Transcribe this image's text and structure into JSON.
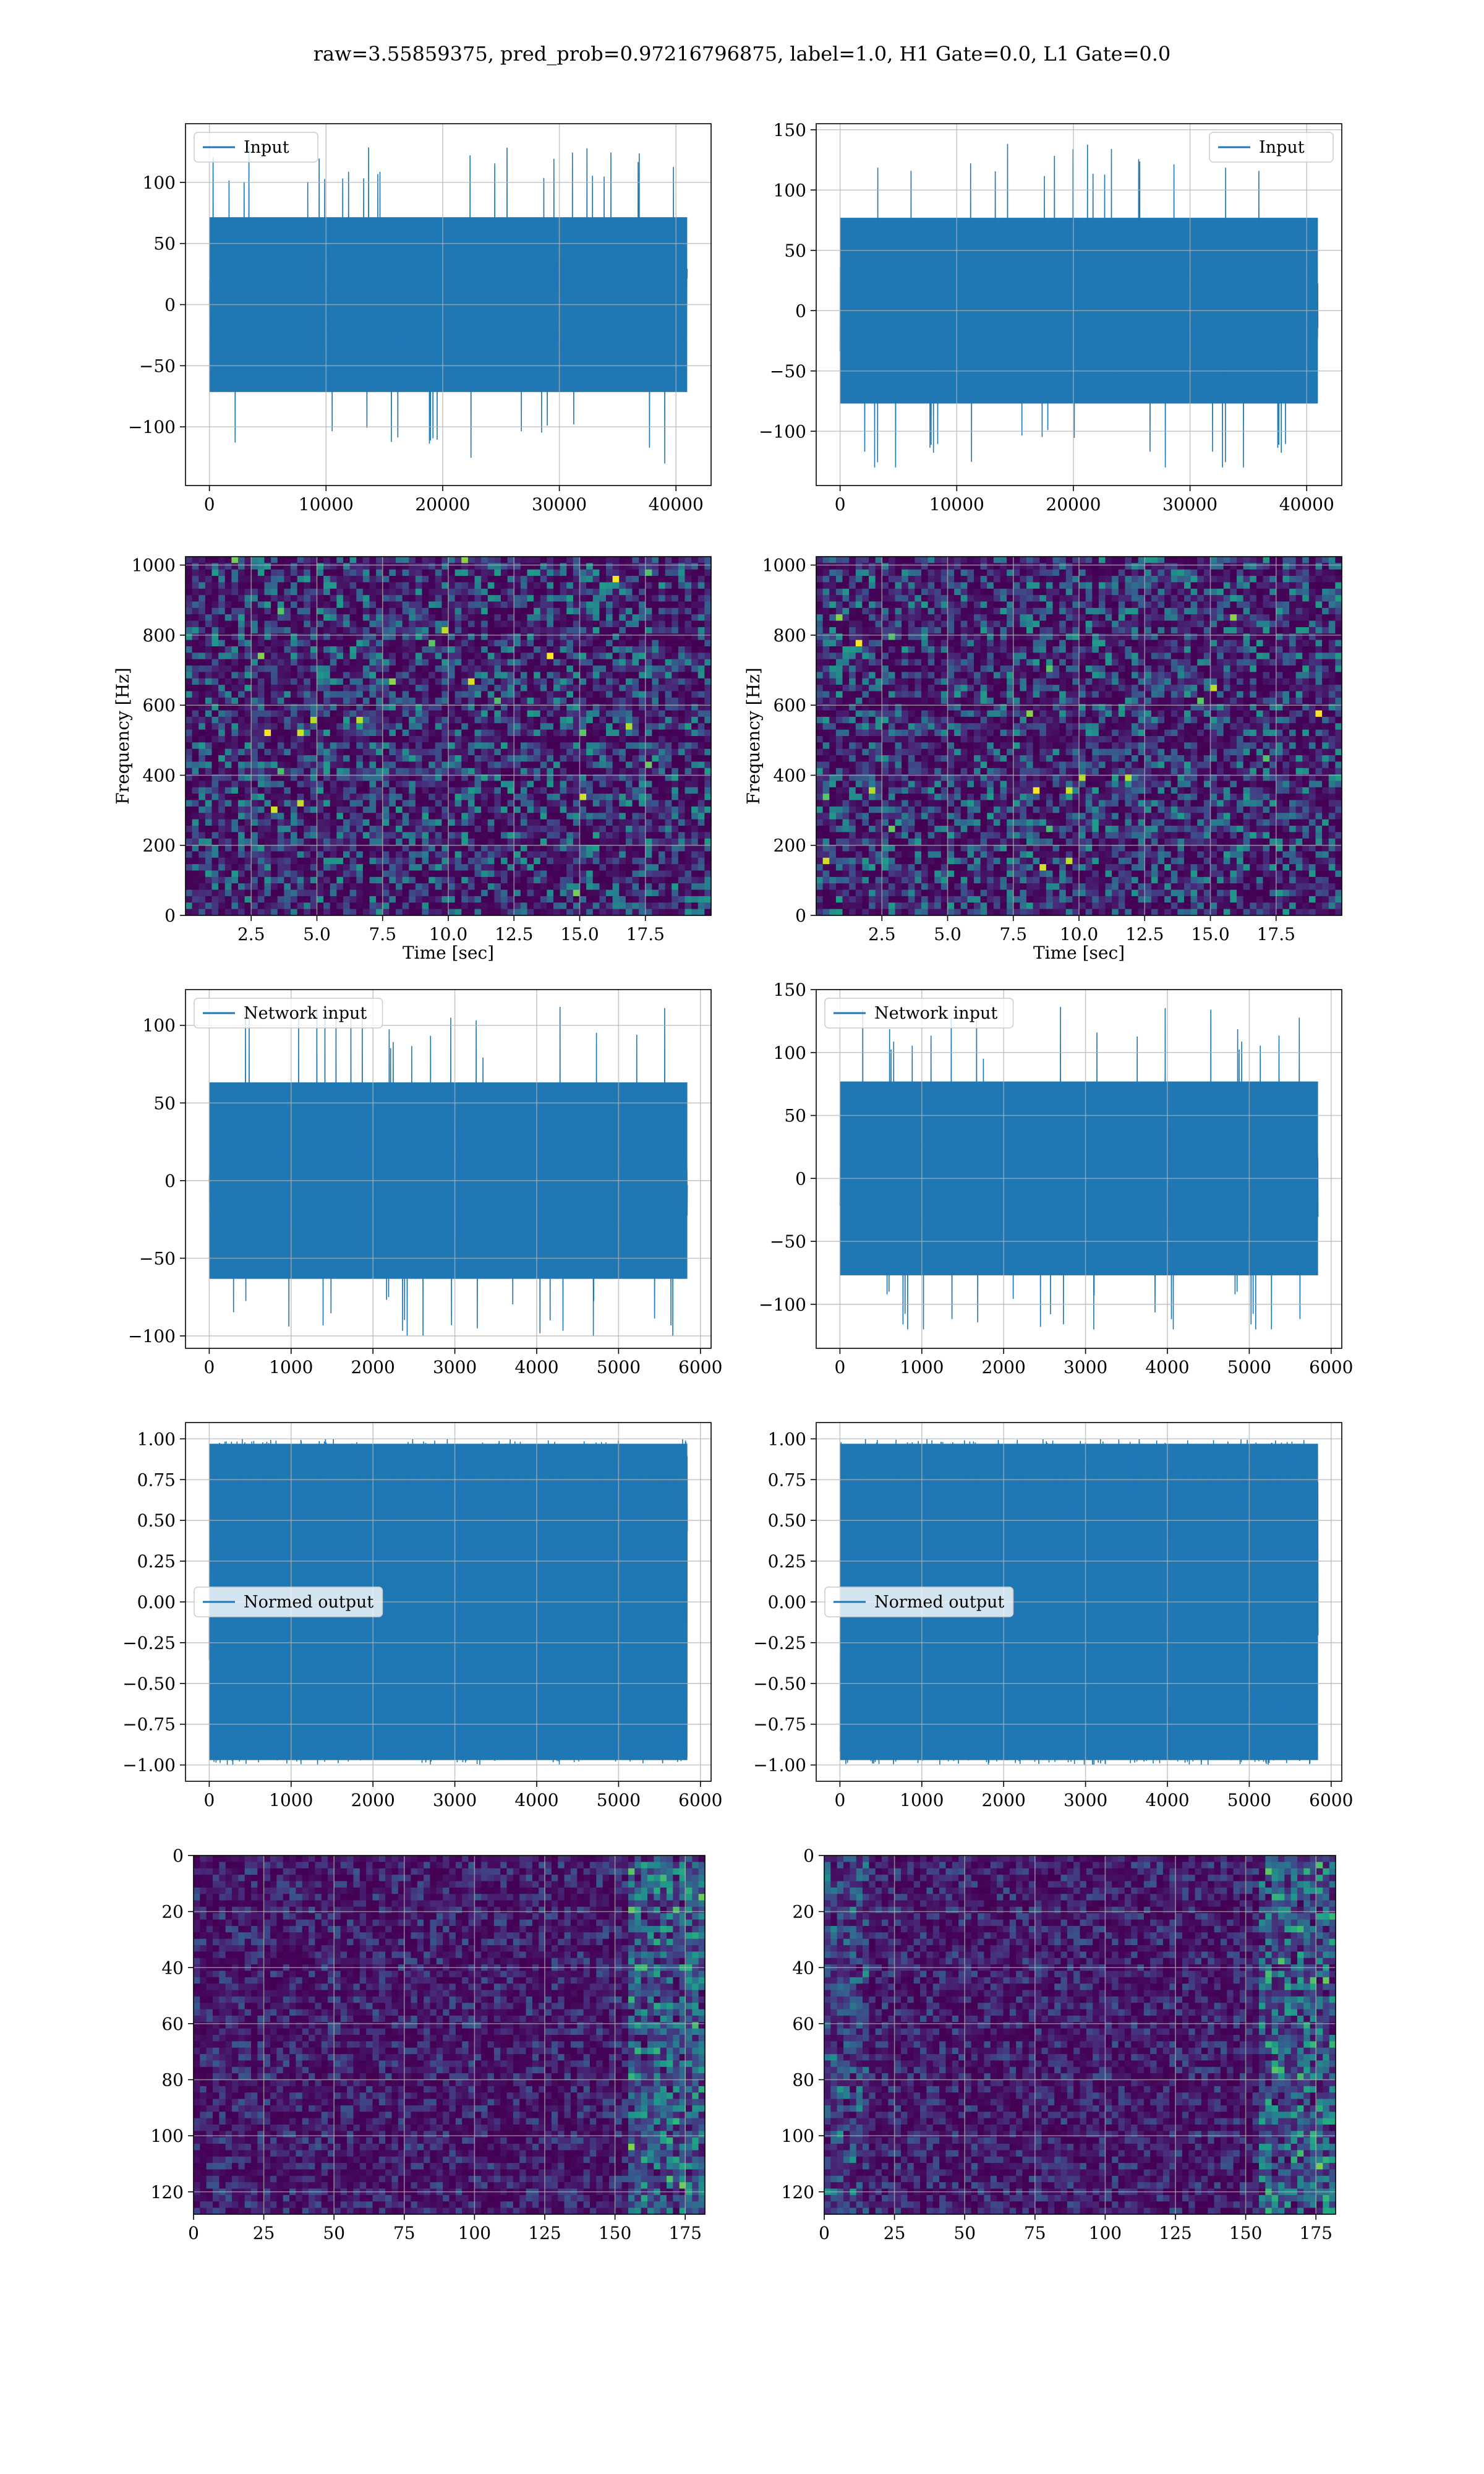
{
  "figure": {
    "title": "raw=3.55859375, pred_prob=0.97216796875, label=1.0, H1 Gate=0.0, L1 Gate=0.0"
  },
  "colors": {
    "line": "#1f77b4",
    "grid": "#b0b0b0",
    "viridis_low": "#440154",
    "viridis_mid": "#21918c",
    "viridis_high": "#fde725"
  },
  "chart_data": [
    {
      "type": "line",
      "row": 1,
      "col": 1,
      "series": [
        {
          "name": "Input",
          "amplitude_range": [
            -130,
            130
          ]
        }
      ],
      "x_range": [
        0,
        40960
      ],
      "xlim": [
        -2048,
        43008
      ],
      "ylim": [
        -148,
        148
      ],
      "x_ticks": [
        0,
        10000,
        20000,
        30000,
        40000
      ],
      "y_ticks": [
        -100,
        -50,
        0,
        50,
        100
      ],
      "legend": "Input",
      "legend_loc": "upper left",
      "grid": true
    },
    {
      "type": "line",
      "row": 1,
      "col": 2,
      "series": [
        {
          "name": "Input",
          "amplitude_range": [
            -130,
            140
          ]
        }
      ],
      "x_range": [
        0,
        40960
      ],
      "xlim": [
        -2048,
        43008
      ],
      "ylim": [
        -145,
        155
      ],
      "x_ticks": [
        0,
        10000,
        20000,
        30000,
        40000
      ],
      "y_ticks": [
        -100,
        -50,
        0,
        50,
        100,
        150
      ],
      "legend": "Input",
      "legend_loc": "upper right",
      "grid": true
    },
    {
      "type": "heatmap",
      "row": 2,
      "col": 1,
      "xlabel": "Time [sec]",
      "ylabel": "Frequency [Hz]",
      "xlim": [
        0,
        20
      ],
      "ylim": [
        0,
        1024
      ],
      "x_ticks": [
        2.5,
        5.0,
        7.5,
        10.0,
        12.5,
        15.0,
        17.5
      ],
      "y_ticks": [
        0,
        200,
        400,
        600,
        800,
        1000
      ],
      "colormap": "viridis",
      "grid": true
    },
    {
      "type": "heatmap",
      "row": 2,
      "col": 2,
      "xlabel": "Time [sec]",
      "ylabel": "Frequency [Hz]",
      "xlim": [
        0,
        20
      ],
      "ylim": [
        0,
        1024
      ],
      "x_ticks": [
        2.5,
        5.0,
        7.5,
        10.0,
        12.5,
        15.0,
        17.5
      ],
      "y_ticks": [
        0,
        200,
        400,
        600,
        800,
        1000
      ],
      "colormap": "viridis",
      "grid": true
    },
    {
      "type": "line",
      "row": 3,
      "col": 1,
      "series": [
        {
          "name": "Network input",
          "amplitude_range": [
            -100,
            115
          ]
        }
      ],
      "x_range": [
        0,
        5840
      ],
      "xlim": [
        -290,
        6130
      ],
      "ylim": [
        -108,
        123
      ],
      "x_ticks": [
        0,
        1000,
        2000,
        3000,
        4000,
        5000,
        6000
      ],
      "y_ticks": [
        -100,
        -50,
        0,
        50,
        100
      ],
      "legend": "Network input",
      "legend_loc": "upper left",
      "grid": true
    },
    {
      "type": "line",
      "row": 3,
      "col": 2,
      "series": [
        {
          "name": "Network input",
          "amplitude_range": [
            -120,
            140
          ]
        }
      ],
      "x_range": [
        0,
        5840
      ],
      "xlim": [
        -290,
        6130
      ],
      "ylim": [
        -135,
        150
      ],
      "x_ticks": [
        0,
        1000,
        2000,
        3000,
        4000,
        5000,
        6000
      ],
      "y_ticks": [
        -100,
        -50,
        0,
        50,
        100,
        150
      ],
      "legend": "Network input",
      "legend_loc": "upper left",
      "grid": true
    },
    {
      "type": "line",
      "row": 4,
      "col": 1,
      "series": [
        {
          "name": "Normed output",
          "amplitude_range": [
            -1.0,
            1.0
          ]
        }
      ],
      "x_range": [
        0,
        5840
      ],
      "xlim": [
        -290,
        6130
      ],
      "ylim": [
        -1.1,
        1.1
      ],
      "x_ticks": [
        0,
        1000,
        2000,
        3000,
        4000,
        5000,
        6000
      ],
      "y_ticks": [
        -1.0,
        -0.75,
        -0.5,
        -0.25,
        0.0,
        0.25,
        0.5,
        0.75,
        1.0
      ],
      "legend": "Normed output",
      "legend_loc": "center left",
      "grid": true
    },
    {
      "type": "line",
      "row": 4,
      "col": 2,
      "series": [
        {
          "name": "Normed output",
          "amplitude_range": [
            -1.0,
            1.0
          ]
        }
      ],
      "x_range": [
        0,
        5840
      ],
      "xlim": [
        -290,
        6130
      ],
      "ylim": [
        -1.1,
        1.1
      ],
      "x_ticks": [
        0,
        1000,
        2000,
        3000,
        4000,
        5000,
        6000
      ],
      "y_ticks": [
        -1.0,
        -0.75,
        -0.5,
        -0.25,
        0.0,
        0.25,
        0.5,
        0.75,
        1.0
      ],
      "legend": "Normed output",
      "legend_loc": "center left",
      "grid": true
    },
    {
      "type": "heatmap",
      "row": 5,
      "col": 1,
      "xlim": [
        0,
        182
      ],
      "ylim": [
        128,
        0
      ],
      "x_ticks": [
        0,
        25,
        50,
        75,
        100,
        125,
        150,
        175
      ],
      "y_ticks": [
        0,
        20,
        40,
        60,
        80,
        100,
        120
      ],
      "colormap": "viridis",
      "grid": true
    },
    {
      "type": "heatmap",
      "row": 5,
      "col": 2,
      "xlim": [
        0,
        182
      ],
      "ylim": [
        128,
        0
      ],
      "x_ticks": [
        0,
        25,
        50,
        75,
        100,
        125,
        150,
        175
      ],
      "y_ticks": [
        0,
        20,
        40,
        60,
        80,
        100,
        120
      ],
      "colormap": "viridis",
      "grid": true
    }
  ]
}
